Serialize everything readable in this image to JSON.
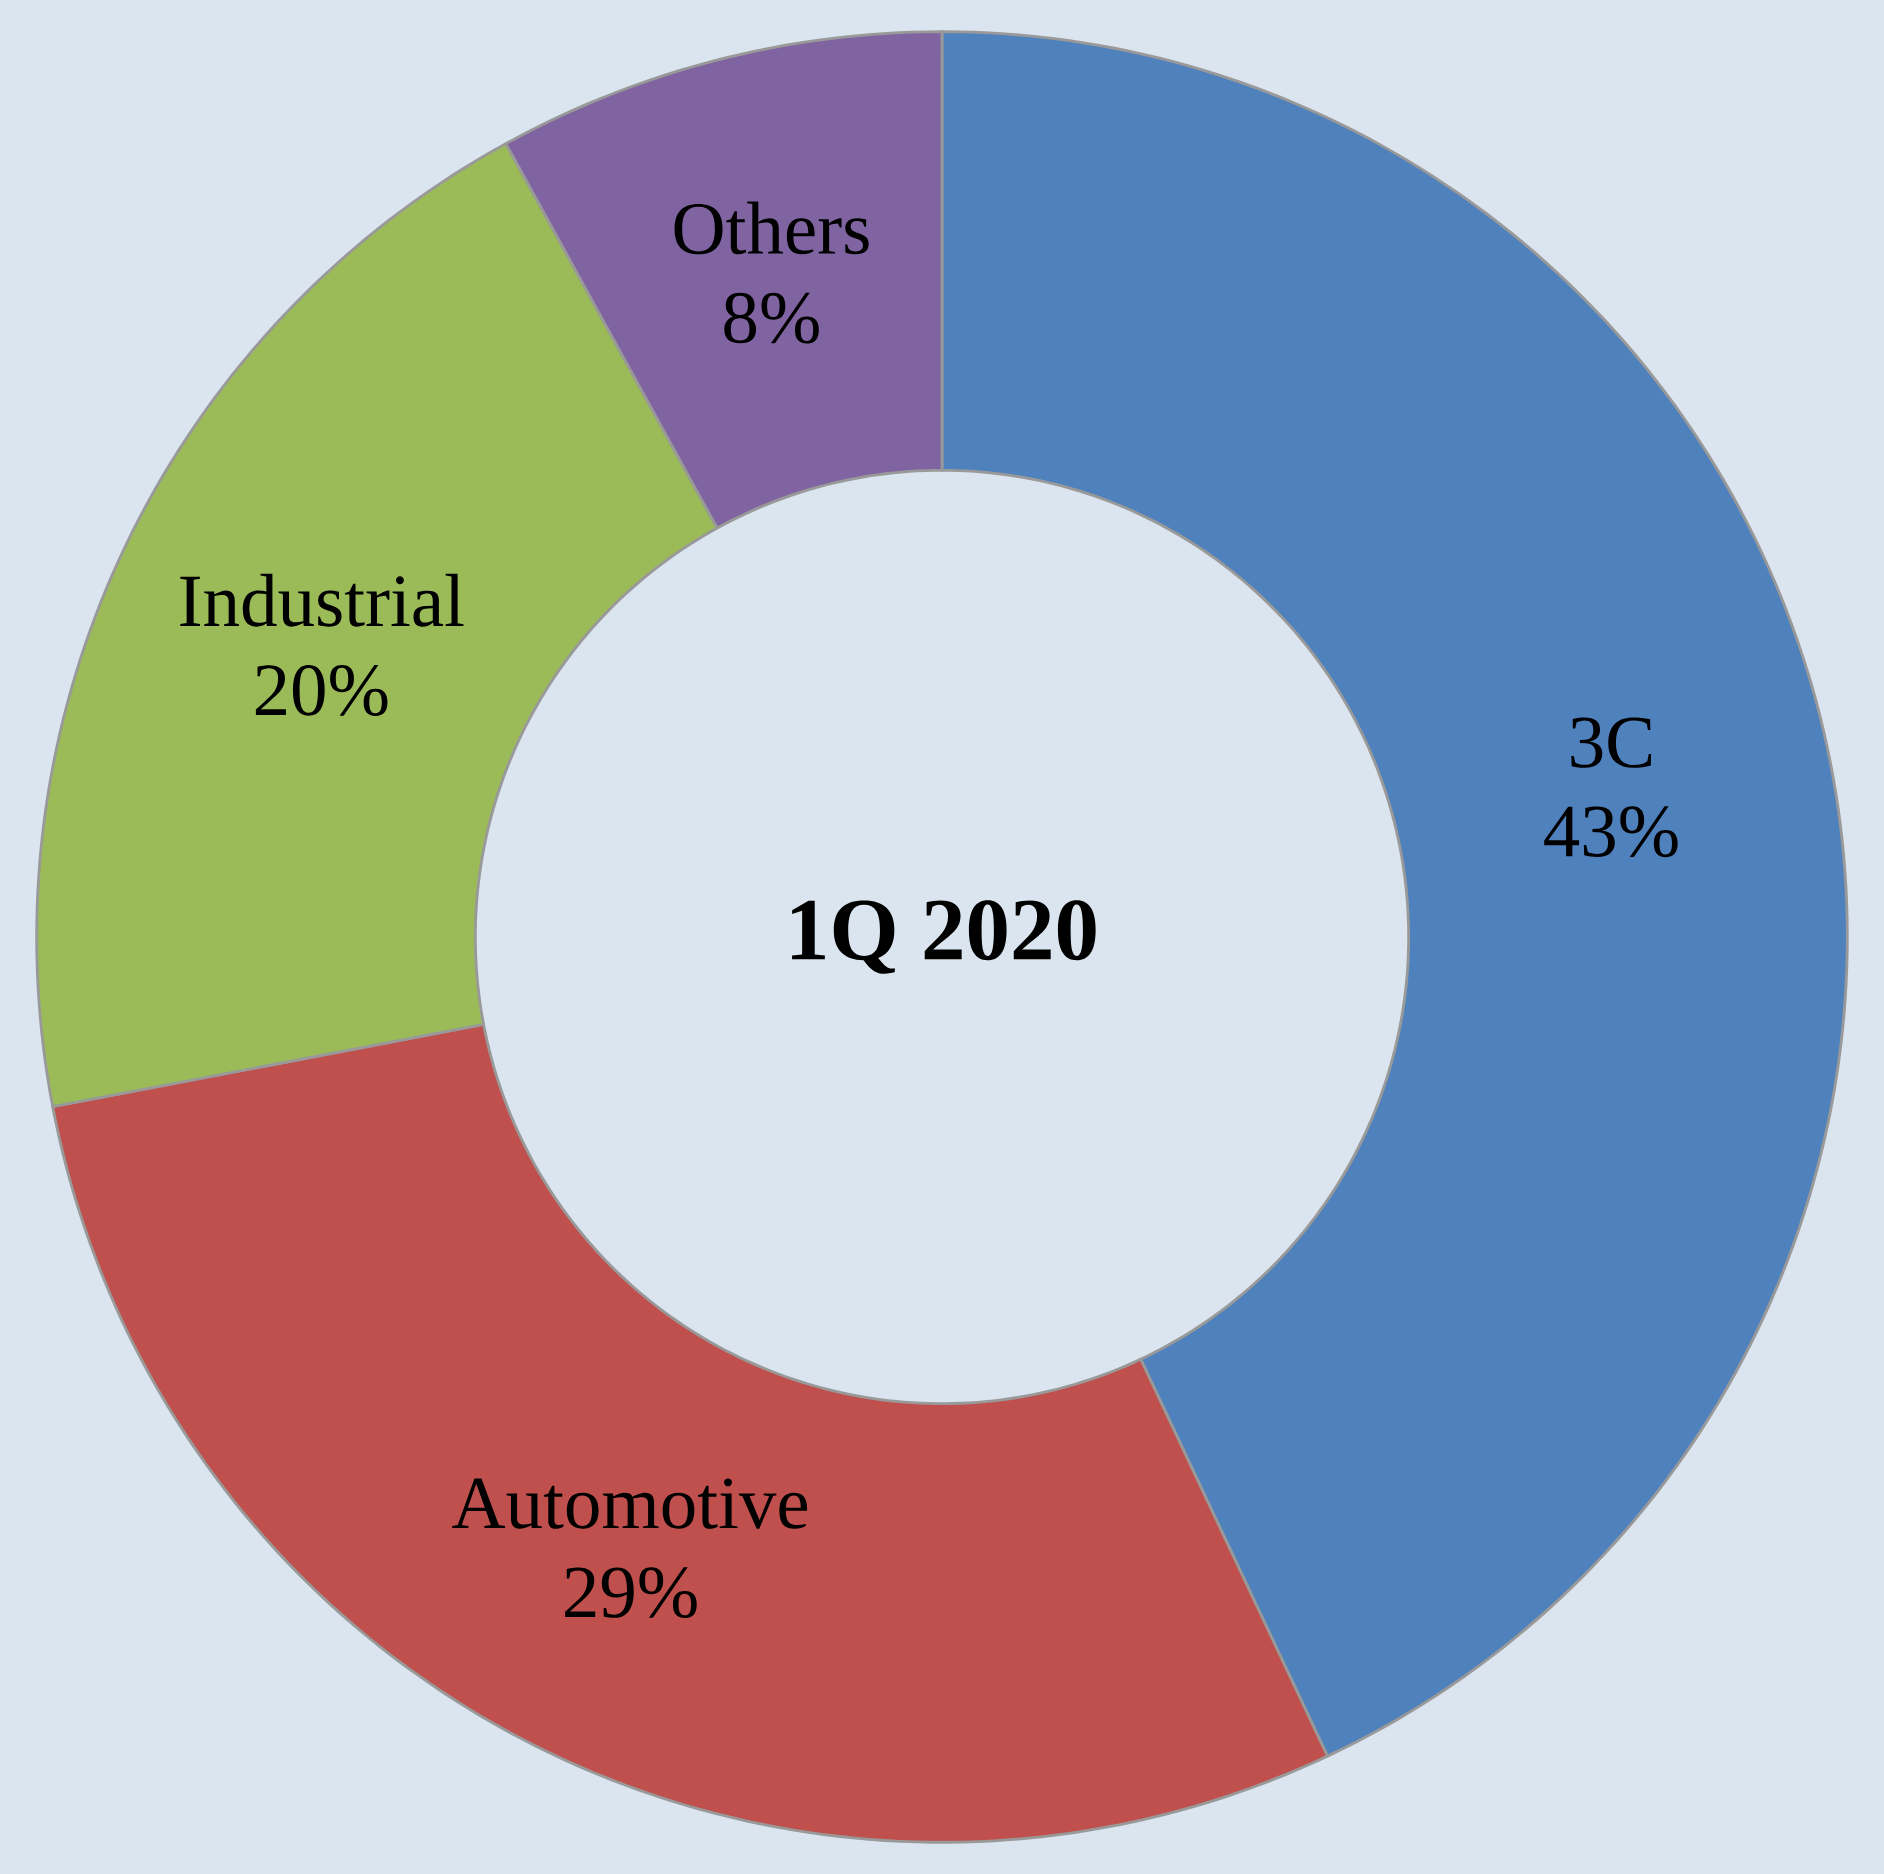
{
  "chart_data": {
    "type": "donut",
    "title": "1Q 2020",
    "categories": [
      "3C",
      "Automotive",
      "Industrial",
      "Others"
    ],
    "values": [
      43,
      29,
      20,
      8
    ],
    "value_labels": [
      "43%",
      "29%",
      "20%",
      "8%"
    ],
    "colors": [
      "#4f81bd",
      "#c0504d",
      "#9bbb59",
      "#8064a2"
    ]
  }
}
